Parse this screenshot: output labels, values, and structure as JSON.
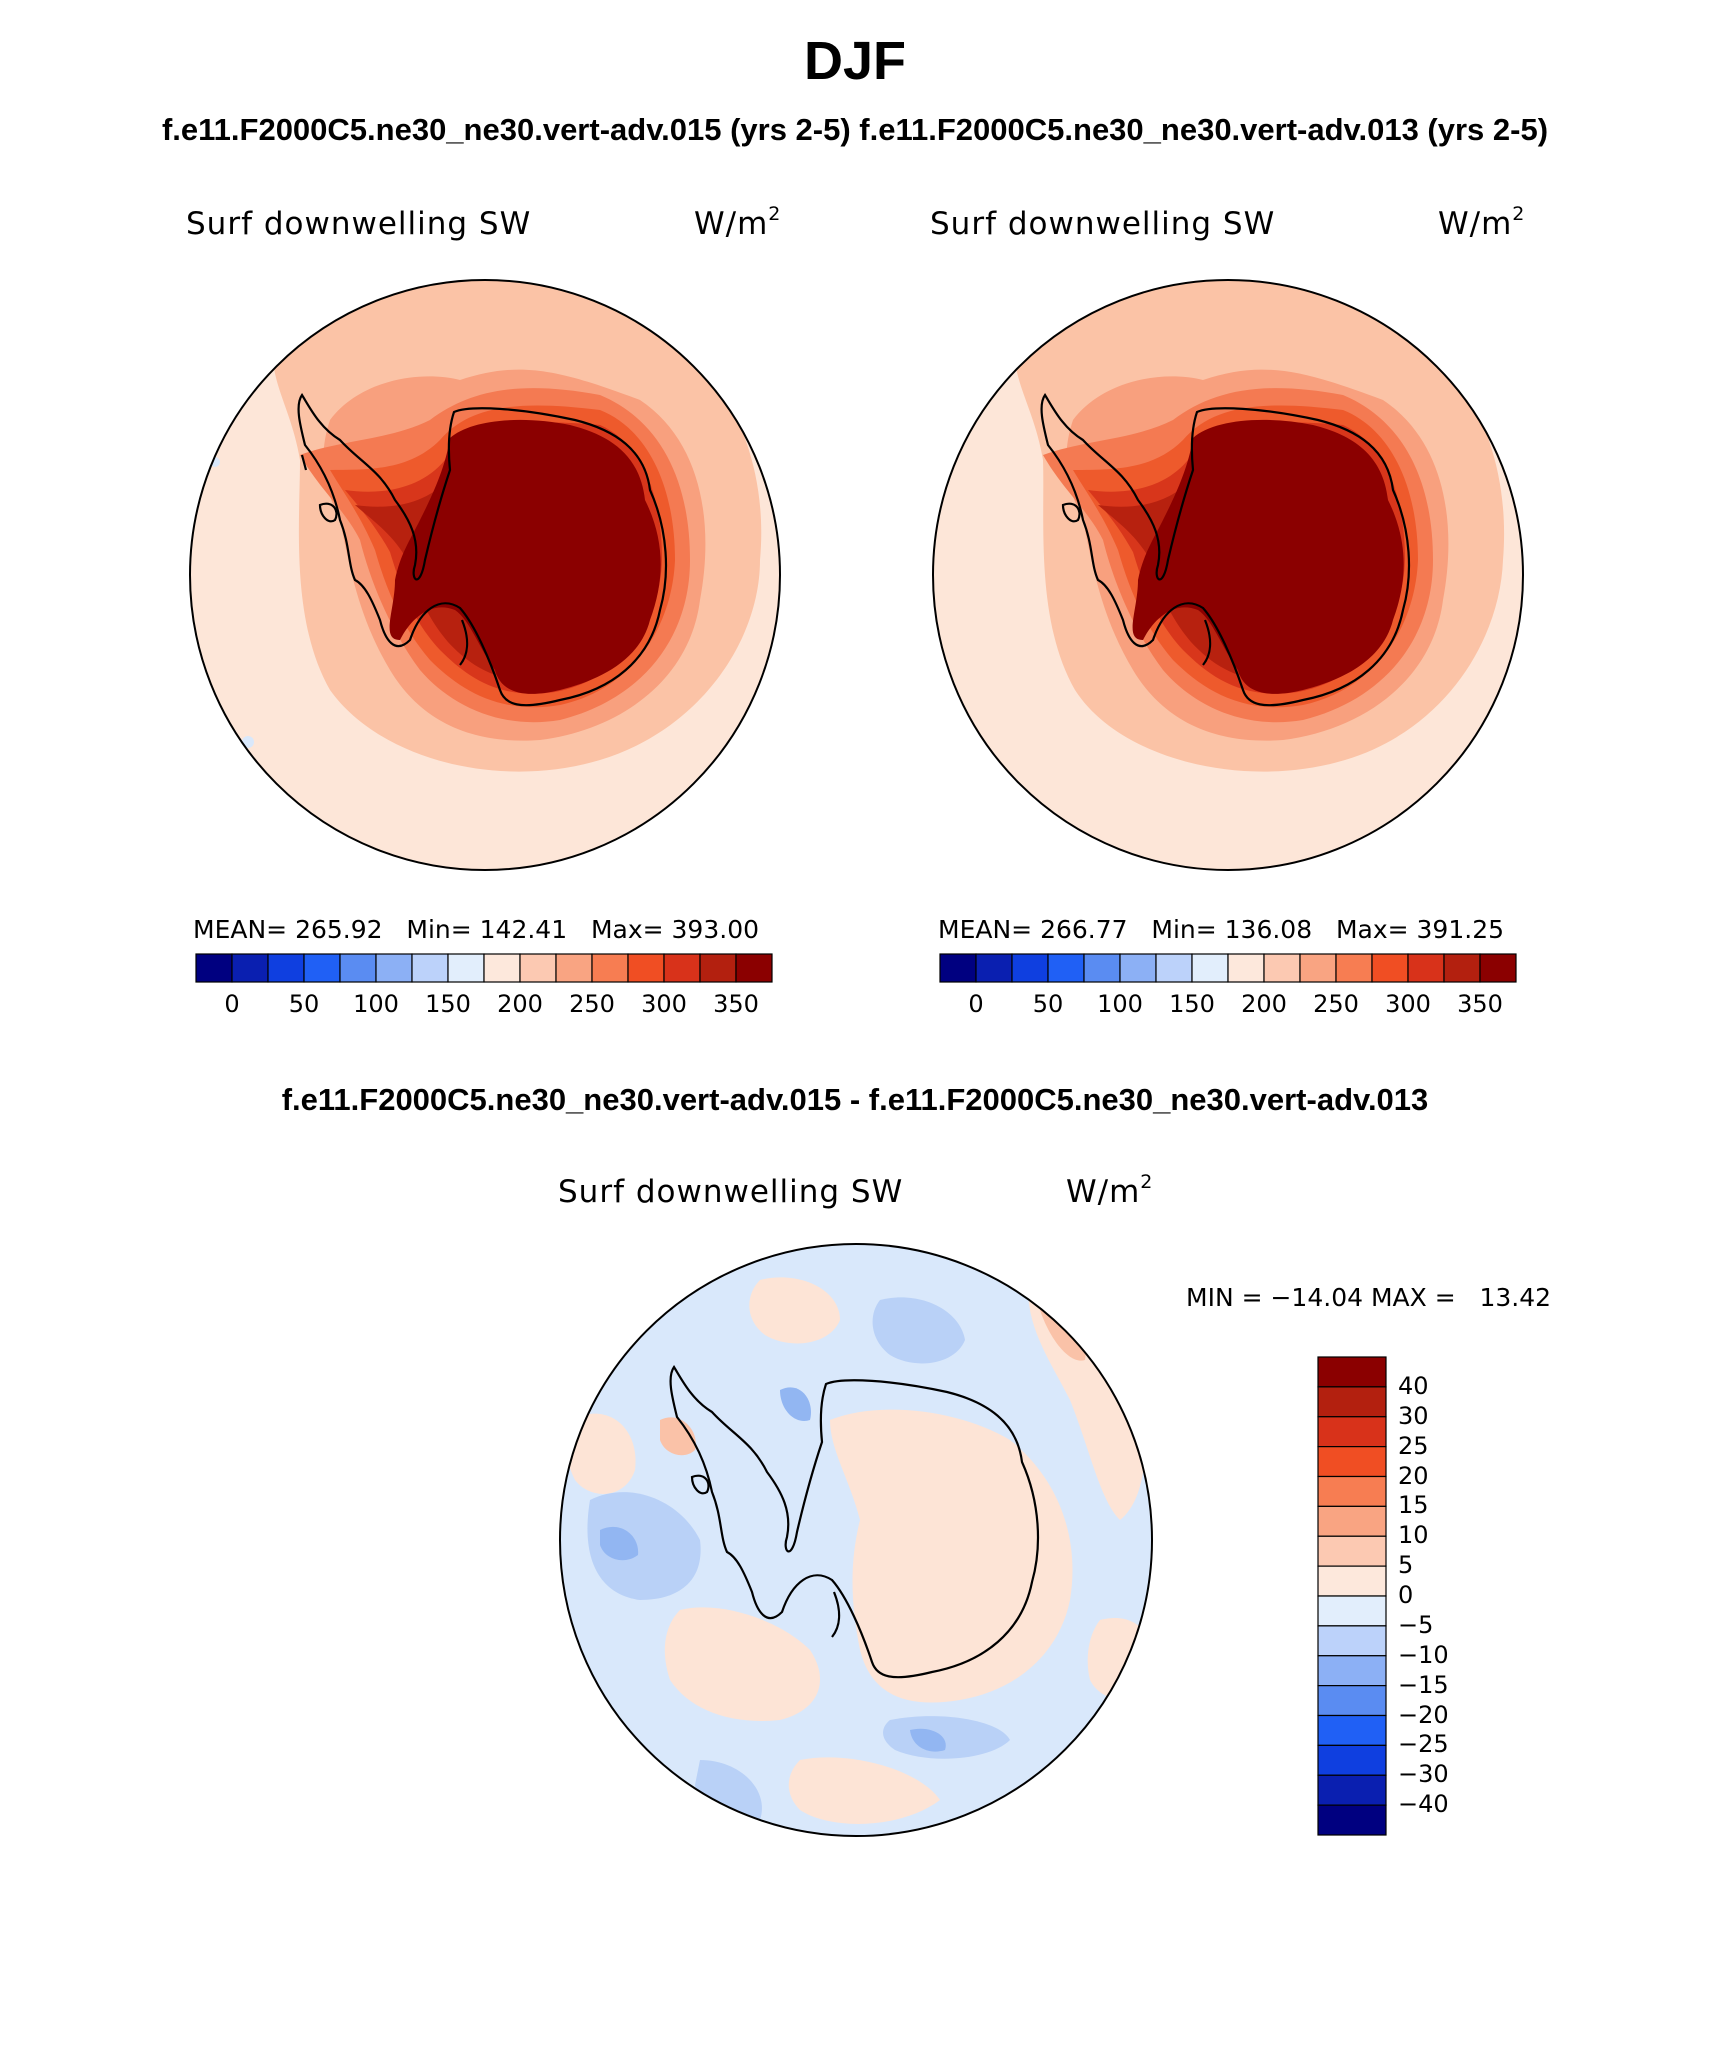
{
  "title": "DJF",
  "subtitle_top": "f.e11.F2000C5.ne30_ne30.vert-adv.015 (yrs 2-5)  f.e11.F2000C5.ne30_ne30.vert-adv.013 (yrs 2-5)",
  "subtitle_diff": "f.e11.F2000C5.ne30_ne30.vert-adv.015 - f.e11.F2000C5.ne30_ne30.vert-adv.013",
  "variable": "Surf downwelling SW",
  "units_base": "W/m",
  "units_exp": "2",
  "panels": [
    {
      "stats": "MEAN= 265.92   Min= 142.41   Max= 393.00",
      "mean": 265.92,
      "min": 142.41,
      "max": 393.0
    },
    {
      "stats": "MEAN= 266.77   Min= 136.08   Max= 391.25",
      "mean": 266.77,
      "min": 136.08,
      "max": 391.25
    }
  ],
  "abs_colorbar": {
    "ticks": [
      "0",
      "50",
      "100",
      "150",
      "200",
      "250",
      "300",
      "350"
    ],
    "colors": [
      "#000080",
      "#0a1fb0",
      "#0f3fe0",
      "#2060f5",
      "#5a8cf2",
      "#8cb0f5",
      "#bcd2fa",
      "#e2eefc",
      "#fde8dc",
      "#fcc9b2",
      "#f9a482",
      "#f77d52",
      "#f04e23",
      "#d8321a",
      "#b3200f",
      "#8b0000"
    ]
  },
  "diff_stats": "MIN = −14.04 MAX =   13.42",
  "diff_colorbar": {
    "ticks": [
      "40",
      "30",
      "25",
      "20",
      "15",
      "10",
      "5",
      "0",
      "−5",
      "−10",
      "−15",
      "−20",
      "−25",
      "−30",
      "−40"
    ],
    "colors": [
      "#8b0000",
      "#b3200f",
      "#d8321a",
      "#f04e23",
      "#f77d52",
      "#f9a482",
      "#fcc9b2",
      "#fde8dc",
      "#e2eefc",
      "#bcd2fa",
      "#8cb0f5",
      "#5a8cf2",
      "#2060f5",
      "#0f3fe0",
      "#0a1fb0",
      "#000080"
    ]
  },
  "map_colors": {
    "ocean_far": "#fde6d8",
    "ocean_mid": "#fbc3a6",
    "ocean_near": "#f8a07e",
    "coast_1": "#f47a52",
    "coast_2": "#ee5a2c",
    "coast_3": "#d8361b",
    "coast_4": "#b7210f",
    "interior": "#8b0000",
    "diff_pos": "#fde4d6",
    "diff_pos2": "#fac2a8",
    "diff_neg": "#d9e8fb",
    "diff_neg2": "#b9d1f7",
    "diff_neg3": "#92b6f2"
  }
}
